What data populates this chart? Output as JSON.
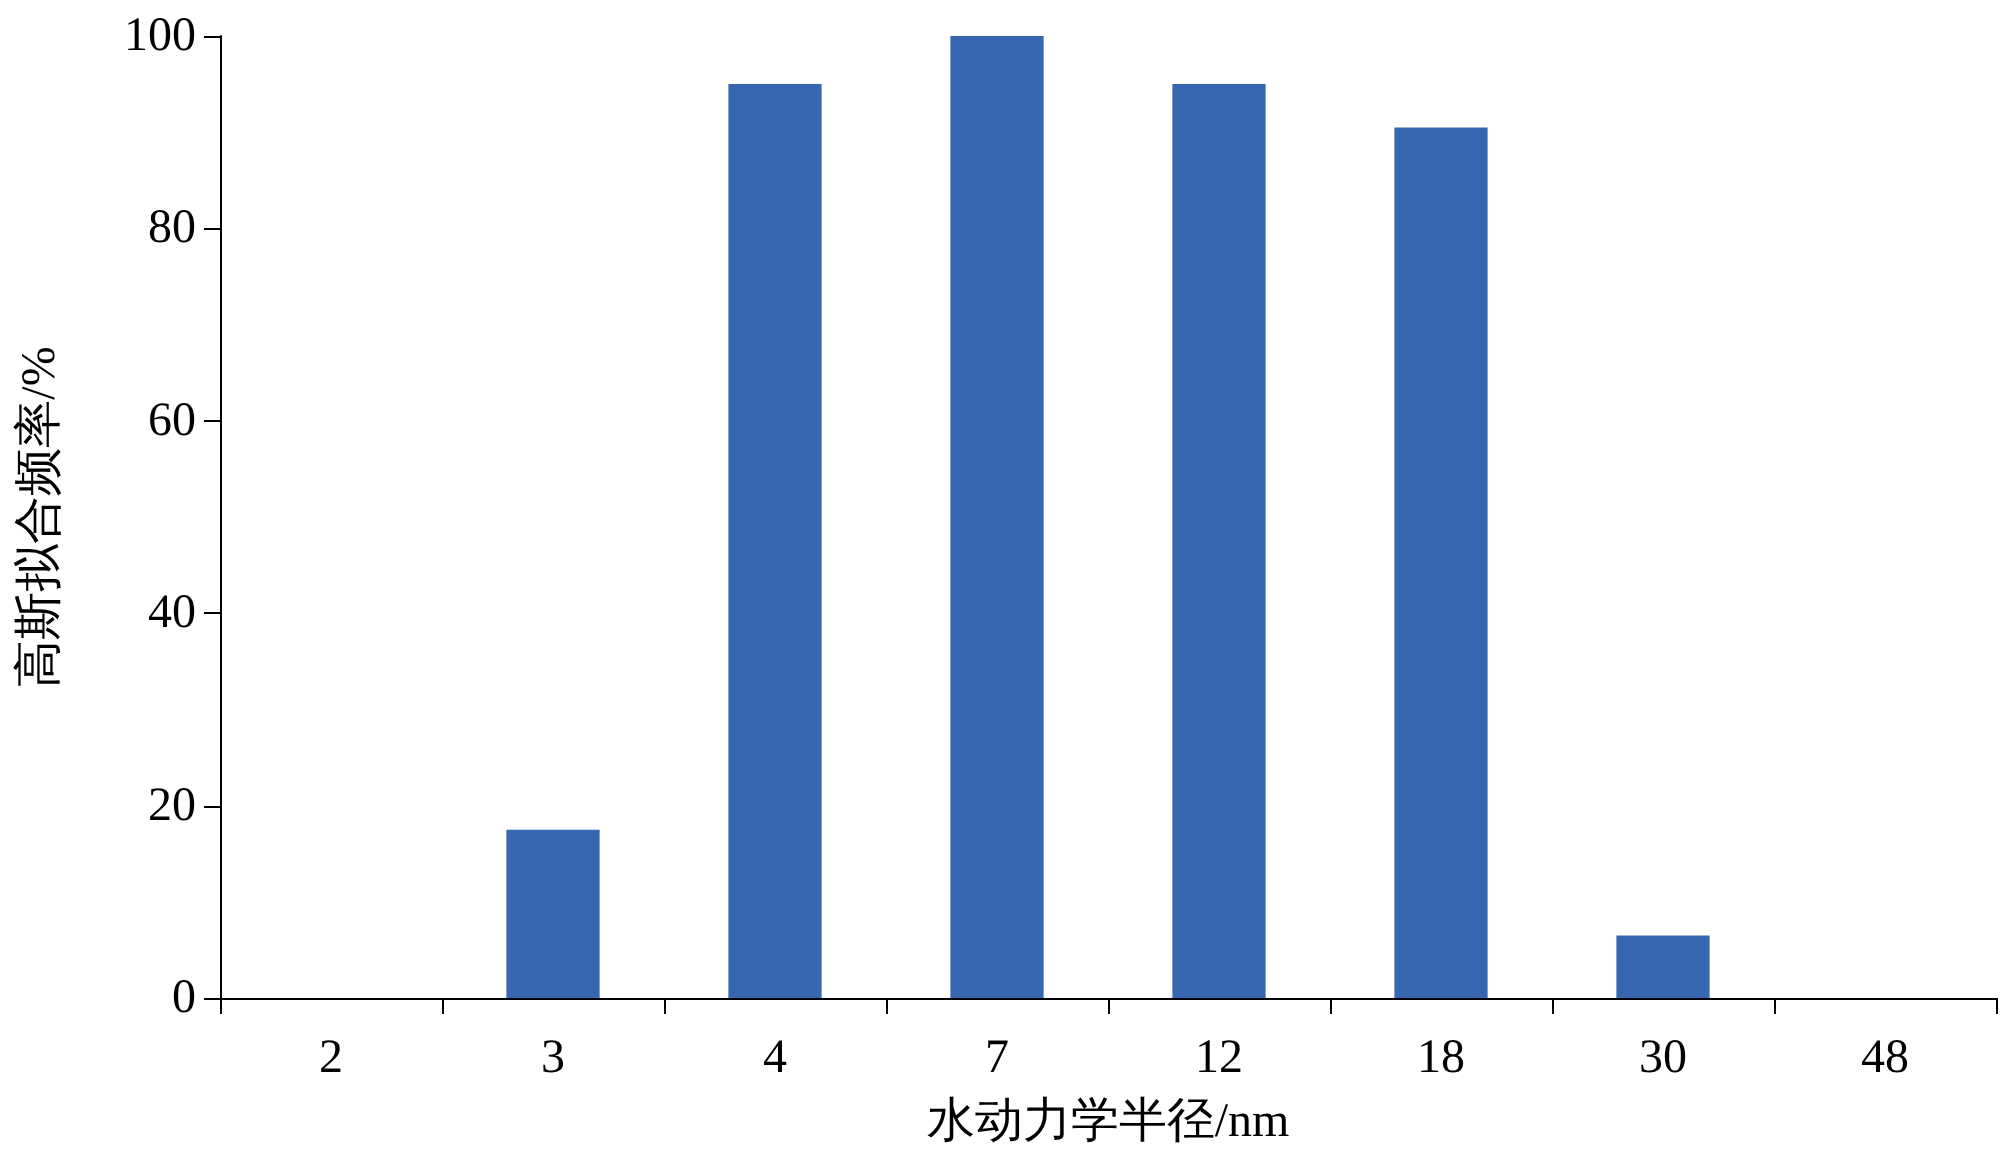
{
  "chart_data": {
    "type": "bar",
    "xlabel": "水动力学半径/nm",
    "ylabel": "高斯拟合频率/%",
    "categories": [
      "2",
      "3",
      "4",
      "7",
      "12",
      "18",
      "30",
      "48"
    ],
    "values": [
      0,
      17.5,
      95,
      100,
      95,
      90.5,
      6.5,
      0
    ],
    "color": "#3767b0",
    "ylim": [
      0,
      100
    ],
    "yticks": [
      0,
      20,
      40,
      60,
      80,
      100
    ],
    "grid": false
  }
}
